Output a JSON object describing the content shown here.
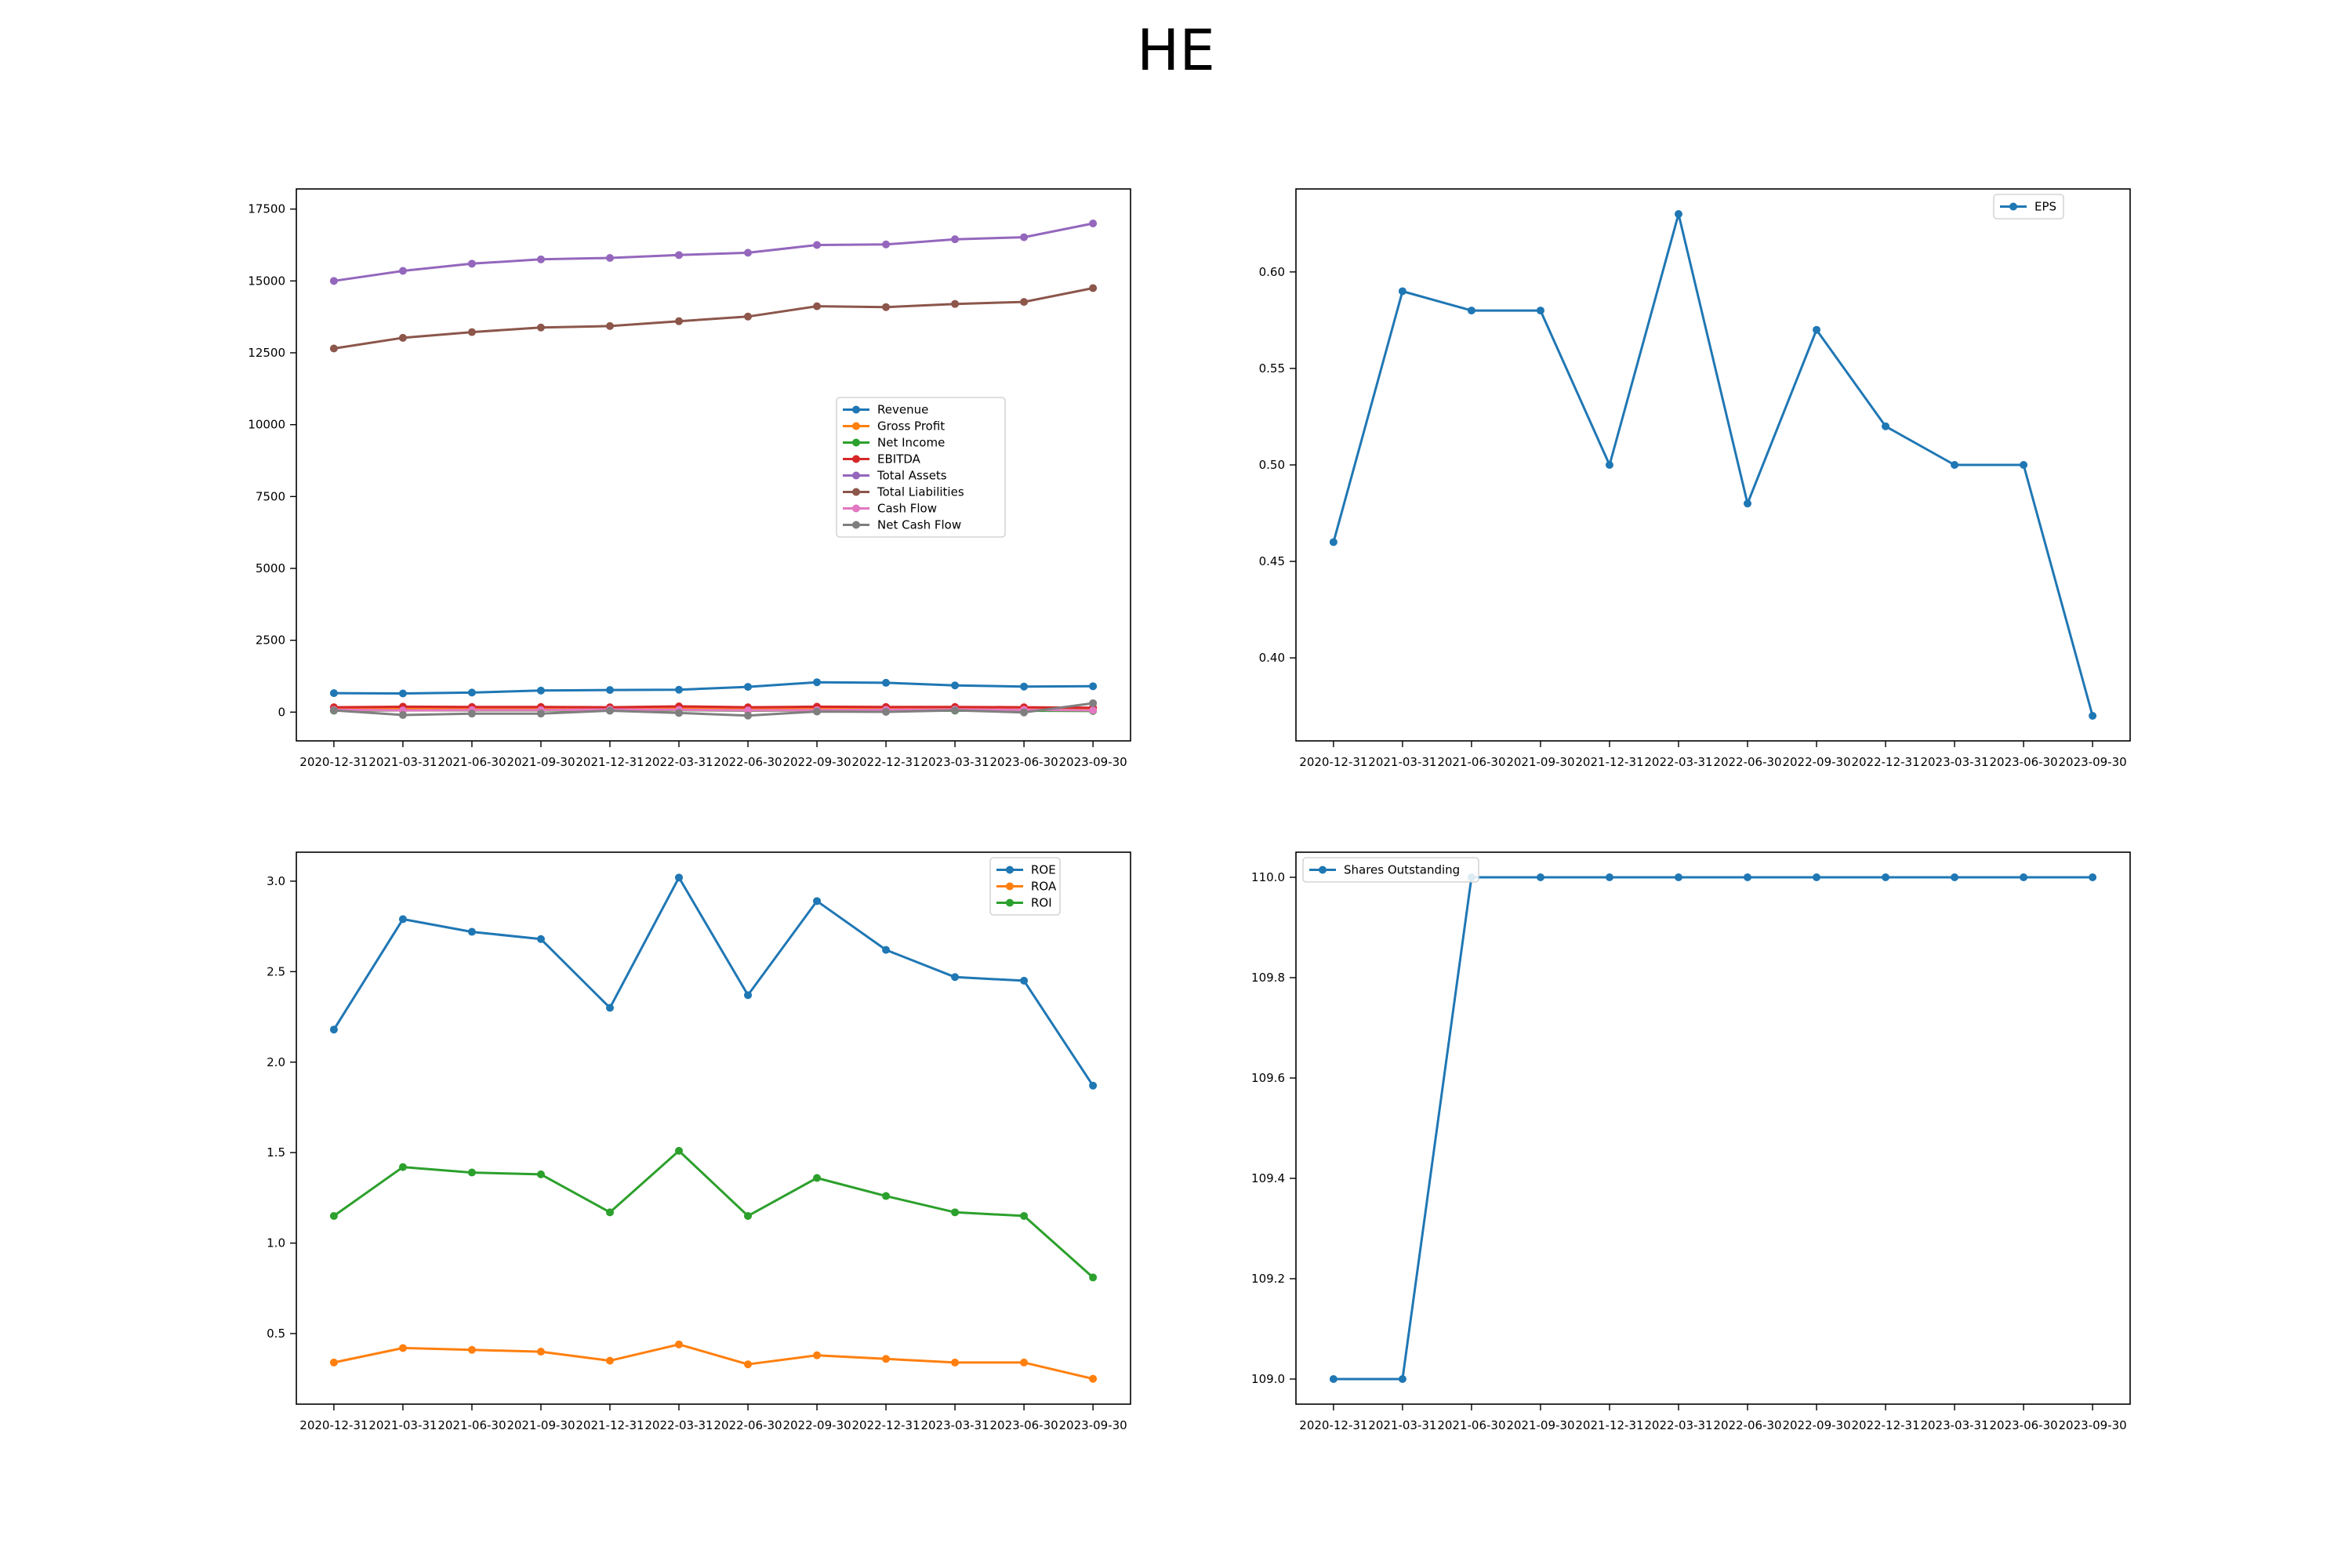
{
  "figure": {
    "title": "HE"
  },
  "chart_data": [
    {
      "type": "line",
      "title": "",
      "xlabel": "",
      "ylabel": "",
      "categories": [
        "2020-12-31",
        "2021-03-31",
        "2021-06-30",
        "2021-09-30",
        "2021-12-31",
        "2022-03-31",
        "2022-06-30",
        "2022-09-30",
        "2022-12-31",
        "2023-03-31",
        "2023-06-30",
        "2023-09-30"
      ],
      "ylim": [
        -1000,
        18200
      ],
      "yticks": [
        0,
        2500,
        5000,
        7500,
        10000,
        12500,
        15000,
        17500
      ],
      "legend": "center-right",
      "grid": false,
      "series": [
        {
          "name": "Revenue",
          "color": "#1f77b4",
          "values": [
            660,
            650,
            680,
            750,
            770,
            780,
            880,
            1040,
            1020,
            930,
            890,
            900
          ]
        },
        {
          "name": "Gross Profit",
          "color": "#ff7f0e",
          "values": [
            140,
            120,
            130,
            130,
            130,
            140,
            120,
            130,
            130,
            140,
            130,
            110
          ]
        },
        {
          "name": "Net Income",
          "color": "#2ca02c",
          "values": [
            50,
            60,
            60,
            60,
            50,
            70,
            50,
            60,
            60,
            50,
            50,
            40
          ]
        },
        {
          "name": "EBITDA",
          "color": "#d62728",
          "values": [
            170,
            190,
            180,
            180,
            170,
            200,
            170,
            190,
            180,
            180,
            170,
            150
          ]
        },
        {
          "name": "Total Assets",
          "color": "#9467bd",
          "values": [
            15000,
            15350,
            15600,
            15750,
            15800,
            15900,
            15980,
            16250,
            16270,
            16450,
            16520,
            17000
          ]
        },
        {
          "name": "Total Liabilities",
          "color": "#8c564b",
          "values": [
            12650,
            13020,
            13220,
            13380,
            13430,
            13600,
            13760,
            14120,
            14090,
            14200,
            14270,
            14750
          ]
        },
        {
          "name": "Cash Flow",
          "color": "#e377c2",
          "values": [
            80,
            60,
            70,
            70,
            90,
            80,
            60,
            70,
            80,
            90,
            80,
            60
          ]
        },
        {
          "name": "Net Cash Flow",
          "color": "#7f7f7f",
          "values": [
            60,
            -100,
            -50,
            -50,
            50,
            -30,
            -120,
            20,
            10,
            60,
            -10,
            310
          ]
        }
      ]
    },
    {
      "type": "line",
      "title": "",
      "xlabel": "",
      "ylabel": "",
      "categories": [
        "2020-12-31",
        "2021-03-31",
        "2021-06-30",
        "2021-09-30",
        "2021-12-31",
        "2022-03-31",
        "2022-06-30",
        "2022-09-30",
        "2022-12-31",
        "2023-03-31",
        "2023-06-30",
        "2023-09-30"
      ],
      "ylim": [
        0.357,
        0.643
      ],
      "yticks": [
        0.4,
        0.45,
        0.5,
        0.55,
        0.6
      ],
      "yticklabels": [
        "0.40",
        "0.45",
        "0.50",
        "0.55",
        "0.60"
      ],
      "legend": "top-right",
      "grid": false,
      "series": [
        {
          "name": "EPS",
          "color": "#1f77b4",
          "values": [
            0.46,
            0.59,
            0.58,
            0.58,
            0.5,
            0.63,
            0.48,
            0.57,
            0.52,
            0.5,
            0.5,
            0.37
          ]
        }
      ]
    },
    {
      "type": "line",
      "title": "",
      "xlabel": "",
      "ylabel": "",
      "categories": [
        "2020-12-31",
        "2021-03-31",
        "2021-06-30",
        "2021-09-30",
        "2021-12-31",
        "2022-03-31",
        "2022-06-30",
        "2022-09-30",
        "2022-12-31",
        "2023-03-31",
        "2023-06-30",
        "2023-09-30"
      ],
      "ylim": [
        0.11,
        3.16
      ],
      "yticks": [
        0.5,
        1.0,
        1.5,
        2.0,
        2.5,
        3.0
      ],
      "yticklabels": [
        "0.5",
        "1.0",
        "1.5",
        "2.0",
        "2.5",
        "3.0"
      ],
      "legend": "top-right",
      "grid": false,
      "series": [
        {
          "name": "ROE",
          "color": "#1f77b4",
          "values": [
            2.18,
            2.79,
            2.72,
            2.68,
            2.3,
            3.02,
            2.37,
            2.89,
            2.62,
            2.47,
            2.45,
            1.87
          ]
        },
        {
          "name": "ROA",
          "color": "#ff7f0e",
          "values": [
            0.34,
            0.42,
            0.41,
            0.4,
            0.35,
            0.44,
            0.33,
            0.38,
            0.36,
            0.34,
            0.34,
            0.25
          ]
        },
        {
          "name": "ROI",
          "color": "#2ca02c",
          "values": [
            1.15,
            1.42,
            1.39,
            1.38,
            1.17,
            1.51,
            1.15,
            1.36,
            1.26,
            1.17,
            1.15,
            0.81
          ]
        }
      ]
    },
    {
      "type": "line",
      "title": "",
      "xlabel": "",
      "ylabel": "",
      "categories": [
        "2020-12-31",
        "2021-03-31",
        "2021-06-30",
        "2021-09-30",
        "2021-12-31",
        "2022-03-31",
        "2022-06-30",
        "2022-09-30",
        "2022-12-31",
        "2023-03-31",
        "2023-06-30",
        "2023-09-30"
      ],
      "ylim": [
        108.95,
        110.05
      ],
      "yticks": [
        109.0,
        109.2,
        109.4,
        109.6,
        109.8,
        110.0
      ],
      "yticklabels": [
        "109.0",
        "109.2",
        "109.4",
        "109.6",
        "109.8",
        "110.0"
      ],
      "legend": "top-left",
      "grid": false,
      "series": [
        {
          "name": "Shares Outstanding",
          "color": "#1f77b4",
          "values": [
            109.0,
            109.0,
            110.0,
            110.0,
            110.0,
            110.0,
            110.0,
            110.0,
            110.0,
            110.0,
            110.0,
            110.0
          ]
        }
      ]
    }
  ]
}
